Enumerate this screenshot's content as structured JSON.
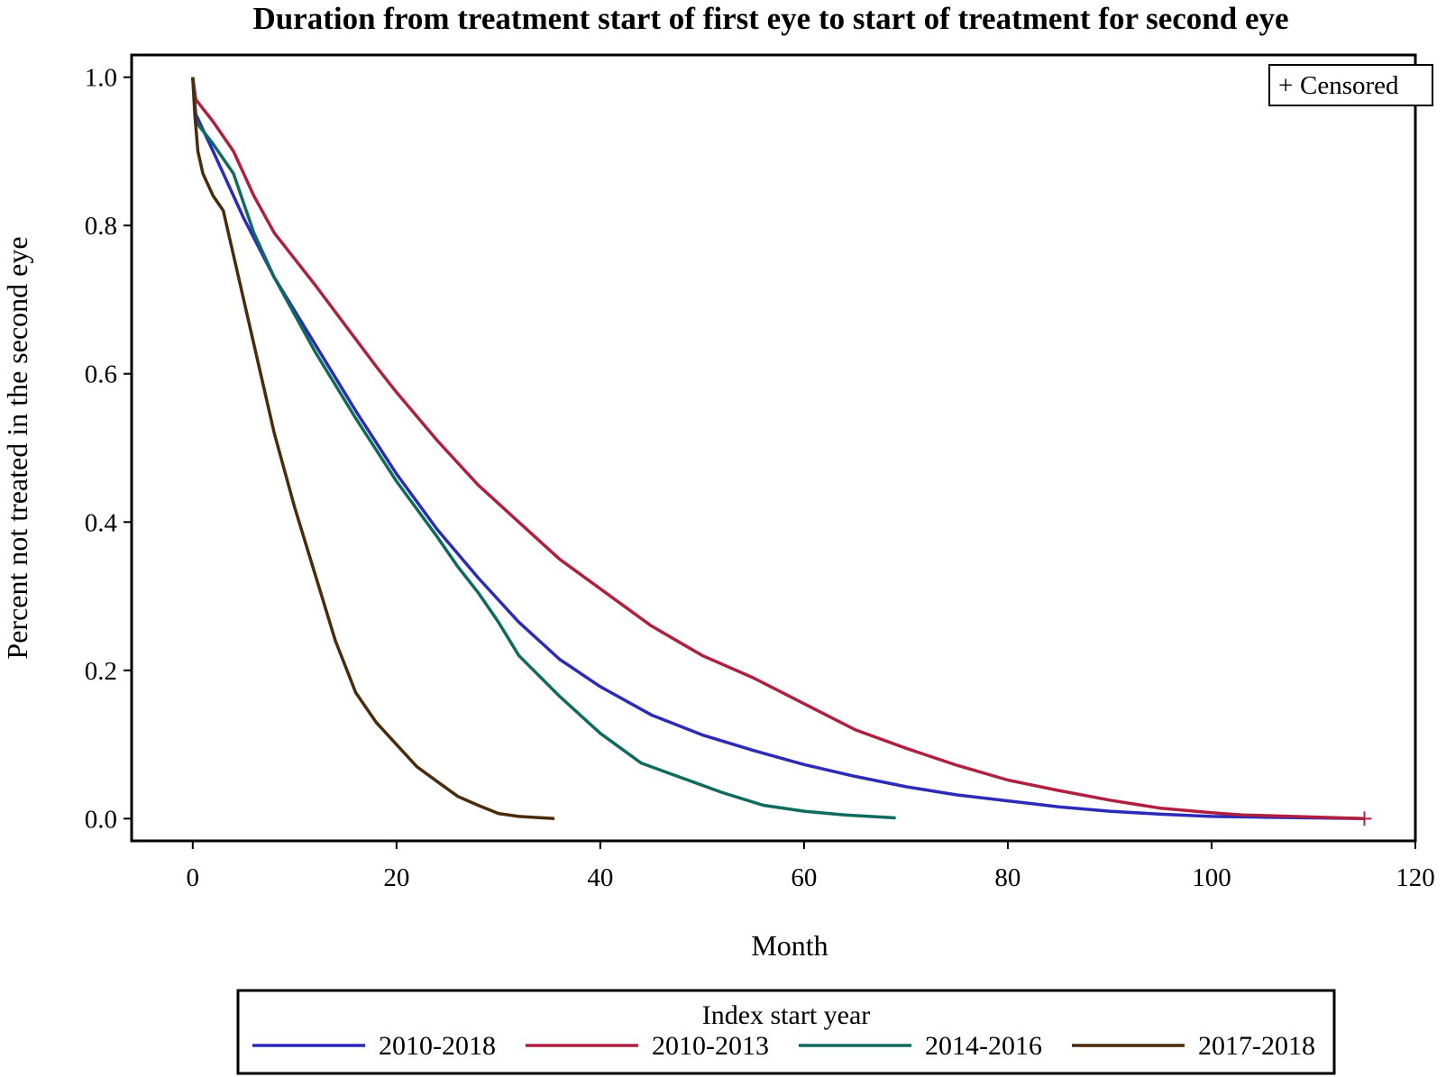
{
  "chart_data": {
    "type": "line",
    "title": "Duration from treatment start of first eye to start of treatment for second eye",
    "xlabel": "Month",
    "ylabel": "Percent not treated in the second eye",
    "xlim": [
      -6,
      120
    ],
    "ylim": [
      -0.03,
      1.03
    ],
    "xticks": [
      "0",
      "20",
      "40",
      "60",
      "80",
      "100",
      "120"
    ],
    "yticks": [
      "0.0",
      "0.2",
      "0.4",
      "0.6",
      "0.8",
      "1.0"
    ],
    "grid": false,
    "censor_legend": {
      "symbol": "+",
      "label": "Censored",
      "placement": "top-right"
    },
    "legend": {
      "title": "Index start year",
      "placement": "bottom"
    },
    "series": [
      {
        "name": "2010-2018",
        "color": "#2b2bb8",
        "x": [
          0,
          0.3,
          2,
          5,
          8,
          12,
          16,
          20,
          24,
          28,
          32,
          36,
          40,
          45,
          50,
          55,
          60,
          65,
          70,
          75,
          80,
          85,
          90,
          95,
          100,
          105,
          110,
          115
        ],
        "y": [
          1.0,
          0.95,
          0.9,
          0.81,
          0.73,
          0.64,
          0.55,
          0.465,
          0.39,
          0.325,
          0.265,
          0.215,
          0.178,
          0.14,
          0.113,
          0.092,
          0.073,
          0.057,
          0.043,
          0.032,
          0.024,
          0.016,
          0.01,
          0.006,
          0.003,
          0.002,
          0.001,
          0.0
        ]
      },
      {
        "name": "2010-2013",
        "color": "#b0203e",
        "x": [
          0,
          0.3,
          2,
          4,
          6,
          8,
          10,
          12,
          15,
          18,
          20,
          24,
          28,
          32,
          36,
          40,
          45,
          50,
          55,
          60,
          65,
          70,
          75,
          80,
          85,
          90,
          95,
          100,
          103,
          108,
          115
        ],
        "y": [
          1.0,
          0.97,
          0.94,
          0.9,
          0.84,
          0.79,
          0.755,
          0.72,
          0.665,
          0.61,
          0.575,
          0.51,
          0.45,
          0.4,
          0.35,
          0.31,
          0.26,
          0.22,
          0.19,
          0.155,
          0.12,
          0.095,
          0.072,
          0.052,
          0.038,
          0.025,
          0.014,
          0.008,
          0.005,
          0.003,
          0.0
        ],
        "censored": [
          {
            "x": 115,
            "y": 0.0
          }
        ]
      },
      {
        "name": "2014-2016",
        "color": "#0f6b5e",
        "x": [
          0,
          0.3,
          2,
          4,
          6,
          8,
          12,
          16,
          20,
          24,
          26,
          28,
          30,
          32,
          36,
          40,
          44,
          48,
          52,
          56,
          60,
          64,
          69
        ],
        "y": [
          1.0,
          0.94,
          0.91,
          0.87,
          0.79,
          0.73,
          0.63,
          0.54,
          0.455,
          0.38,
          0.34,
          0.305,
          0.265,
          0.22,
          0.165,
          0.115,
          0.075,
          0.055,
          0.035,
          0.018,
          0.01,
          0.005,
          0.001
        ]
      },
      {
        "name": "2017-2018",
        "color": "#4a2b0a",
        "x": [
          0,
          0.2,
          0.5,
          1,
          2,
          3,
          4,
          5,
          6,
          8,
          10,
          12,
          14,
          16,
          18,
          20,
          22,
          24,
          26,
          28,
          30,
          32,
          35.5
        ],
        "y": [
          1.0,
          0.95,
          0.9,
          0.87,
          0.84,
          0.82,
          0.76,
          0.7,
          0.64,
          0.52,
          0.42,
          0.33,
          0.24,
          0.17,
          0.13,
          0.1,
          0.07,
          0.05,
          0.03,
          0.018,
          0.007,
          0.003,
          0.0
        ]
      }
    ]
  }
}
